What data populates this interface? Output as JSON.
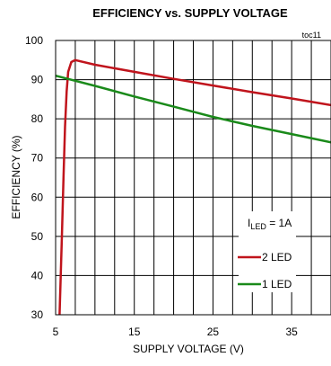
{
  "chart_data": {
    "type": "line",
    "title": "EFFICIENCY vs. SUPPLY VOLTAGE",
    "tag": "toc11",
    "xlabel": "SUPPLY VOLTAGE (V)",
    "ylabel": "EFFICIENCY (%)",
    "xlim": [
      5,
      40
    ],
    "ylim": [
      30,
      100
    ],
    "xticks": [
      5,
      15,
      25,
      35
    ],
    "yticks": [
      30,
      40,
      50,
      60,
      70,
      80,
      90,
      100
    ],
    "grid": true,
    "annotation": {
      "main": "I",
      "sub": "LED",
      "rest": " = 1A"
    },
    "legend_position": "bottom-right",
    "series": [
      {
        "name": "2 LED",
        "color": "#c0141c",
        "points": [
          [
            5.5,
            30
          ],
          [
            5.8,
            50
          ],
          [
            6.0,
            65
          ],
          [
            6.2,
            78
          ],
          [
            6.4,
            87
          ],
          [
            6.6,
            92
          ],
          [
            7.0,
            94.5
          ],
          [
            7.5,
            95
          ],
          [
            10,
            93.8
          ],
          [
            15,
            92
          ],
          [
            20,
            90.2
          ],
          [
            25,
            88.5
          ],
          [
            30,
            86.8
          ],
          [
            35,
            85.2
          ],
          [
            40,
            83.5
          ]
        ]
      },
      {
        "name": "1 LED",
        "color": "#1a8a1a",
        "points": [
          [
            5,
            91
          ],
          [
            10,
            88.4
          ],
          [
            15,
            85.7
          ],
          [
            20,
            83.1
          ],
          [
            25,
            80.5
          ],
          [
            30,
            78.2
          ],
          [
            35,
            76.1
          ],
          [
            40,
            74
          ]
        ]
      }
    ]
  }
}
